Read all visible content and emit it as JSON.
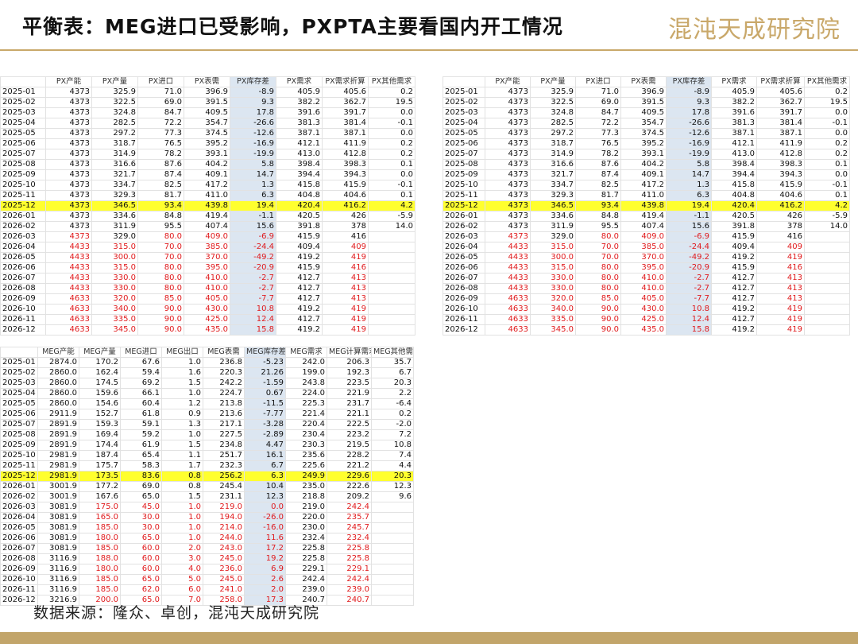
{
  "header": {
    "title": "平衡表：MEG进口已受影响，PXPTA主要看国内开工情况",
    "logo": "混沌天成研究院"
  },
  "px_table": {
    "columns": [
      "",
      "PX产能",
      "PX产量",
      "PX进口",
      "PX表需",
      "PX库存差",
      "PX需求",
      "PX需求折算",
      "PX其他需求"
    ],
    "rows": [
      [
        "2025-01",
        "4373",
        "325.9",
        "71.0",
        "396.9",
        "-8.9",
        "405.9",
        "405.6",
        "0.2"
      ],
      [
        "2025-02",
        "4373",
        "322.5",
        "69.0",
        "391.5",
        "9.3",
        "382.2",
        "362.7",
        "19.5"
      ],
      [
        "2025-03",
        "4373",
        "324.8",
        "84.7",
        "409.5",
        "17.8",
        "391.6",
        "391.7",
        "0.0"
      ],
      [
        "2025-04",
        "4373",
        "282.5",
        "72.2",
        "354.7",
        "-26.6",
        "381.3",
        "381.4",
        "-0.1"
      ],
      [
        "2025-05",
        "4373",
        "297.2",
        "77.3",
        "374.5",
        "-12.6",
        "387.1",
        "387.1",
        "0.0"
      ],
      [
        "2025-06",
        "4373",
        "318.7",
        "76.5",
        "395.2",
        "-16.9",
        "412.1",
        "411.9",
        "0.2"
      ],
      [
        "2025-07",
        "4373",
        "314.9",
        "78.2",
        "393.1",
        "-19.9",
        "413.0",
        "412.8",
        "0.2"
      ],
      [
        "2025-08",
        "4373",
        "316.6",
        "87.6",
        "404.2",
        "5.8",
        "398.4",
        "398.3",
        "0.1"
      ],
      [
        "2025-09",
        "4373",
        "321.7",
        "87.4",
        "409.1",
        "14.7",
        "394.4",
        "394.3",
        "0.0"
      ],
      [
        "2025-10",
        "4373",
        "334.7",
        "82.5",
        "417.2",
        "1.3",
        "415.8",
        "415.9",
        "-0.1"
      ],
      [
        "2025-11",
        "4373",
        "329.3",
        "81.7",
        "411.0",
        "6.3",
        "404.8",
        "404.6",
        "0.1"
      ],
      [
        "2025-12",
        "4373",
        "346.5",
        "93.4",
        "439.8",
        "19.4",
        "420.4",
        "416.2",
        "4.2"
      ],
      [
        "2026-01",
        "4373",
        "334.6",
        "84.8",
        "419.4",
        "-1.1",
        "420.5",
        "426",
        "-5.9"
      ],
      [
        "2026-02",
        "4373",
        "311.9",
        "95.5",
        "407.4",
        "15.6",
        "391.8",
        "378",
        "14.0"
      ],
      [
        "2026-03",
        "4373",
        "329.0",
        "80.0",
        "409.0",
        "-6.9",
        "415.9",
        "416",
        ""
      ],
      [
        "2026-04",
        "4433",
        "315.0",
        "70.0",
        "385.0",
        "-24.4",
        "409.4",
        "409",
        ""
      ],
      [
        "2026-05",
        "4433",
        "300.0",
        "70.0",
        "370.0",
        "-49.2",
        "419.2",
        "419",
        ""
      ],
      [
        "2026-06",
        "4433",
        "315.0",
        "80.0",
        "395.0",
        "-20.9",
        "415.9",
        "416",
        ""
      ],
      [
        "2026-07",
        "4433",
        "330.0",
        "80.0",
        "410.0",
        "-2.7",
        "412.7",
        "413",
        ""
      ],
      [
        "2026-08",
        "4433",
        "330.0",
        "80.0",
        "410.0",
        "-2.7",
        "412.7",
        "413",
        ""
      ],
      [
        "2026-09",
        "4633",
        "320.0",
        "85.0",
        "405.0",
        "-7.7",
        "412.7",
        "413",
        ""
      ],
      [
        "2026-10",
        "4633",
        "340.0",
        "90.0",
        "430.0",
        "10.8",
        "419.2",
        "419",
        ""
      ],
      [
        "2026-11",
        "4633",
        "335.0",
        "90.0",
        "425.0",
        "12.4",
        "412.7",
        "419",
        ""
      ],
      [
        "2026-12",
        "4633",
        "345.0",
        "90.0",
        "435.0",
        "15.8",
        "419.2",
        "419",
        ""
      ]
    ]
  },
  "meg_table": {
    "columns": [
      "",
      "MEG产能",
      "MEG产量",
      "MEG进口",
      "MEG出口",
      "MEG表需",
      "MEG库存差",
      "MEG需求",
      "MEG计算需求",
      "MEG其他需求"
    ],
    "rows": [
      [
        "2025-01",
        "2874.0",
        "170.2",
        "67.6",
        "1.0",
        "236.8",
        "-5.23",
        "242.0",
        "206.3",
        "35.7"
      ],
      [
        "2025-02",
        "2860.0",
        "162.4",
        "59.4",
        "1.6",
        "220.3",
        "21.26",
        "199.0",
        "192.3",
        "6.7"
      ],
      [
        "2025-03",
        "2860.0",
        "174.5",
        "69.2",
        "1.5",
        "242.2",
        "-1.59",
        "243.8",
        "223.5",
        "20.3"
      ],
      [
        "2025-04",
        "2860.0",
        "159.6",
        "66.1",
        "1.0",
        "224.7",
        "0.67",
        "224.0",
        "221.9",
        "2.2"
      ],
      [
        "2025-05",
        "2860.0",
        "154.6",
        "60.4",
        "1.2",
        "213.8",
        "-11.5",
        "225.3",
        "231.7",
        "-6.4"
      ],
      [
        "2025-06",
        "2911.9",
        "152.7",
        "61.8",
        "0.9",
        "213.6",
        "-7.77",
        "221.4",
        "221.1",
        "0.2"
      ],
      [
        "2025-07",
        "2891.9",
        "159.3",
        "59.1",
        "1.3",
        "217.1",
        "-3.28",
        "220.4",
        "222.5",
        "-2.0"
      ],
      [
        "2025-08",
        "2891.9",
        "169.4",
        "59.2",
        "1.0",
        "227.5",
        "-2.89",
        "230.4",
        "223.2",
        "7.2"
      ],
      [
        "2025-09",
        "2891.9",
        "174.4",
        "61.9",
        "1.5",
        "234.8",
        "4.47",
        "230.3",
        "219.5",
        "10.8"
      ],
      [
        "2025-10",
        "2981.9",
        "187.4",
        "65.4",
        "1.1",
        "251.7",
        "16.1",
        "235.6",
        "228.2",
        "7.4"
      ],
      [
        "2025-11",
        "2981.9",
        "175.7",
        "58.3",
        "1.7",
        "232.3",
        "6.7",
        "225.6",
        "221.2",
        "4.4"
      ],
      [
        "2025-12",
        "2981.9",
        "173.5",
        "83.6",
        "0.8",
        "256.2",
        "6.3",
        "249.9",
        "229.6",
        "20.3"
      ],
      [
        "2026-01",
        "3001.9",
        "177.2",
        "69.0",
        "0.8",
        "245.4",
        "10.4",
        "235.0",
        "222.6",
        "12.3"
      ],
      [
        "2026-02",
        "3001.9",
        "167.6",
        "65.0",
        "1.5",
        "231.1",
        "12.3",
        "218.8",
        "209.2",
        "9.6"
      ],
      [
        "2026-03",
        "3081.9",
        "175.0",
        "45.0",
        "1.0",
        "219.0",
        "0.0",
        "219.0",
        "242.4",
        ""
      ],
      [
        "2026-04",
        "3081.9",
        "165.0",
        "30.0",
        "1.0",
        "194.0",
        "-26.0",
        "220.0",
        "235.7",
        ""
      ],
      [
        "2026-05",
        "3081.9",
        "185.0",
        "30.0",
        "1.0",
        "214.0",
        "-16.0",
        "230.0",
        "245.7",
        ""
      ],
      [
        "2026-06",
        "3081.9",
        "180.0",
        "65.0",
        "1.0",
        "244.0",
        "11.6",
        "232.4",
        "232.4",
        ""
      ],
      [
        "2026-07",
        "3081.9",
        "185.0",
        "60.0",
        "2.0",
        "243.0",
        "17.2",
        "225.8",
        "225.8",
        ""
      ],
      [
        "2026-08",
        "3116.9",
        "188.0",
        "60.0",
        "3.0",
        "245.0",
        "19.2",
        "225.8",
        "225.8",
        ""
      ],
      [
        "2026-09",
        "3116.9",
        "180.0",
        "60.0",
        "4.0",
        "236.0",
        "6.9",
        "229.1",
        "229.1",
        ""
      ],
      [
        "2026-10",
        "3116.9",
        "185.0",
        "65.0",
        "5.0",
        "245.0",
        "2.6",
        "242.4",
        "242.4",
        ""
      ],
      [
        "2026-11",
        "3116.9",
        "185.0",
        "62.0",
        "6.0",
        "241.0",
        "2.0",
        "239.0",
        "239.0",
        ""
      ],
      [
        "2026-12",
        "3216.9",
        "200.0",
        "65.0",
        "7.0",
        "258.0",
        "17.3",
        "240.7",
        "240.7",
        ""
      ]
    ]
  },
  "footer": {
    "source": "数据来源：隆众、卓创，混沌天成研究院"
  }
}
